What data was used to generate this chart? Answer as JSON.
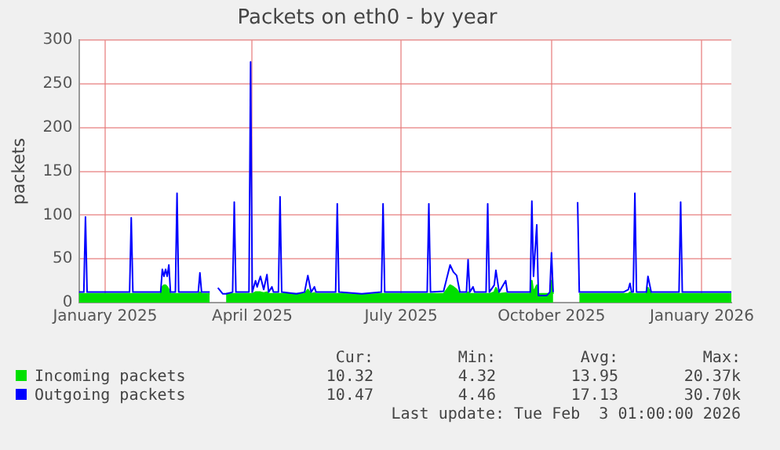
{
  "chart_data": {
    "type": "line",
    "title": "Packets on eth0 - by year",
    "ylabel": "packets",
    "x": [
      "2024-12-16",
      "2024-12-19",
      "2024-12-20",
      "2024-12-21",
      "2025-01-16",
      "2025-01-17",
      "2025-01-18",
      "2025-02-04",
      "2025-02-05",
      "2025-02-06",
      "2025-02-07",
      "2025-02-08",
      "2025-02-09",
      "2025-02-10",
      "2025-02-13",
      "2025-02-14",
      "2025-02-15",
      "2025-02-27",
      "2025-02-28",
      "2025-03-01",
      "2025-03-06",
      "2025-03-09",
      "2025-03-11",
      "2025-03-14",
      "2025-03-16",
      "2025-03-20",
      "2025-03-21",
      "2025-03-22",
      "2025-03-30",
      "2025-03-31",
      "2025-04-01",
      "2025-04-03",
      "2025-04-04",
      "2025-04-06",
      "2025-04-08",
      "2025-04-10",
      "2025-04-11",
      "2025-04-13",
      "2025-04-14",
      "2025-04-17",
      "2025-04-18",
      "2025-04-19",
      "2025-04-28",
      "2025-05-03",
      "2025-05-05",
      "2025-05-07",
      "2025-05-09",
      "2025-05-10",
      "2025-05-22",
      "2025-05-23",
      "2025-05-24",
      "2025-06-07",
      "2025-06-19",
      "2025-06-20",
      "2025-06-21",
      "2025-07-17",
      "2025-07-18",
      "2025-07-19",
      "2025-07-27",
      "2025-07-29",
      "2025-07-31",
      "2025-08-02",
      "2025-08-04",
      "2025-08-06",
      "2025-08-10",
      "2025-08-11",
      "2025-08-12",
      "2025-08-14",
      "2025-08-15",
      "2025-08-22",
      "2025-08-23",
      "2025-08-24",
      "2025-08-27",
      "2025-08-28",
      "2025-08-30",
      "2025-09-03",
      "2025-09-04",
      "2025-09-18",
      "2025-09-19",
      "2025-09-20",
      "2025-09-22",
      "2025-09-23",
      "2025-09-28",
      "2025-09-30",
      "2025-10-01",
      "2025-10-02",
      "2025-10-03",
      "2025-10-17",
      "2025-10-18",
      "2025-11-14",
      "2025-11-17",
      "2025-11-18",
      "2025-11-19",
      "2025-11-20",
      "2025-11-21",
      "2025-11-22",
      "2025-11-28",
      "2025-11-29",
      "2025-12-01",
      "2025-12-18",
      "2025-12-19",
      "2025-12-20",
      "2026-01-19"
    ],
    "series": [
      {
        "name": "Incoming packets",
        "type": "area",
        "color": "#00e000",
        "values": [
          10,
          10,
          10,
          10,
          10,
          10,
          10,
          10,
          18,
          20,
          20,
          18,
          15,
          10,
          10,
          10,
          10,
          10,
          12,
          10,
          10,
          null,
          null,
          null,
          10,
          10,
          10,
          10,
          10,
          10,
          10,
          12,
          12,
          12,
          11,
          12,
          10,
          10,
          10,
          10,
          10,
          10,
          10,
          10,
          15,
          10,
          11,
          10,
          10,
          10,
          10,
          9,
          10,
          10,
          10,
          10,
          10,
          10,
          10,
          15,
          20,
          18,
          15,
          10,
          10,
          12,
          10,
          10,
          10,
          10,
          10,
          10,
          12,
          17,
          10,
          11,
          10,
          10,
          25,
          12,
          20,
          10,
          10,
          10,
          25,
          10,
          null,
          null,
          10,
          10,
          10,
          12,
          10,
          10,
          10,
          10,
          10,
          17,
          10,
          10,
          10,
          10,
          10
        ]
      },
      {
        "name": "Outgoing packets",
        "color": "#0000ff",
        "values": [
          12,
          12,
          98,
          12,
          12,
          97,
          12,
          12,
          38,
          30,
          38,
          30,
          43,
          12,
          12,
          125,
          12,
          12,
          34,
          12,
          12,
          null,
          17,
          10,
          10,
          12,
          115,
          12,
          12,
          275,
          12,
          25,
          18,
          30,
          15,
          32,
          12,
          18,
          12,
          12,
          121,
          12,
          10,
          12,
          31,
          12,
          18,
          12,
          12,
          113,
          12,
          10,
          12,
          113,
          12,
          12,
          113,
          12,
          13,
          28,
          43,
          35,
          31,
          12,
          12,
          49,
          12,
          18,
          12,
          12,
          113,
          12,
          20,
          37,
          12,
          25,
          12,
          12,
          116,
          30,
          89,
          8,
          8,
          12,
          57,
          12,
          null,
          115,
          12,
          12,
          15,
          22,
          12,
          12,
          125,
          12,
          12,
          30,
          12,
          12,
          115,
          12,
          12
        ]
      }
    ],
    "xlim": [
      "2024-12-16",
      "2026-01-19"
    ],
    "xticks": [
      {
        "value": "2025-01-01",
        "label": "January 2025"
      },
      {
        "value": "2025-04-01",
        "label": "April 2025"
      },
      {
        "value": "2025-07-01",
        "label": "July 2025"
      },
      {
        "value": "2025-10-01",
        "label": "October 2025"
      },
      {
        "value": "2026-01-01",
        "label": "January 2026"
      }
    ],
    "ylim": [
      0,
      300
    ],
    "yticks": [
      0,
      50,
      100,
      150,
      200,
      250,
      300
    ],
    "grid": true,
    "legend": "bottom left",
    "annotations": [
      "Cur:",
      "Min:",
      "Avg:",
      "Max:",
      "10.32",
      "4.32",
      "13.95",
      "20.37k",
      "10.47",
      "4.46",
      "17.13",
      "30.70k",
      "Last update: Tue Feb  3 01:00:00 2026"
    ]
  }
}
